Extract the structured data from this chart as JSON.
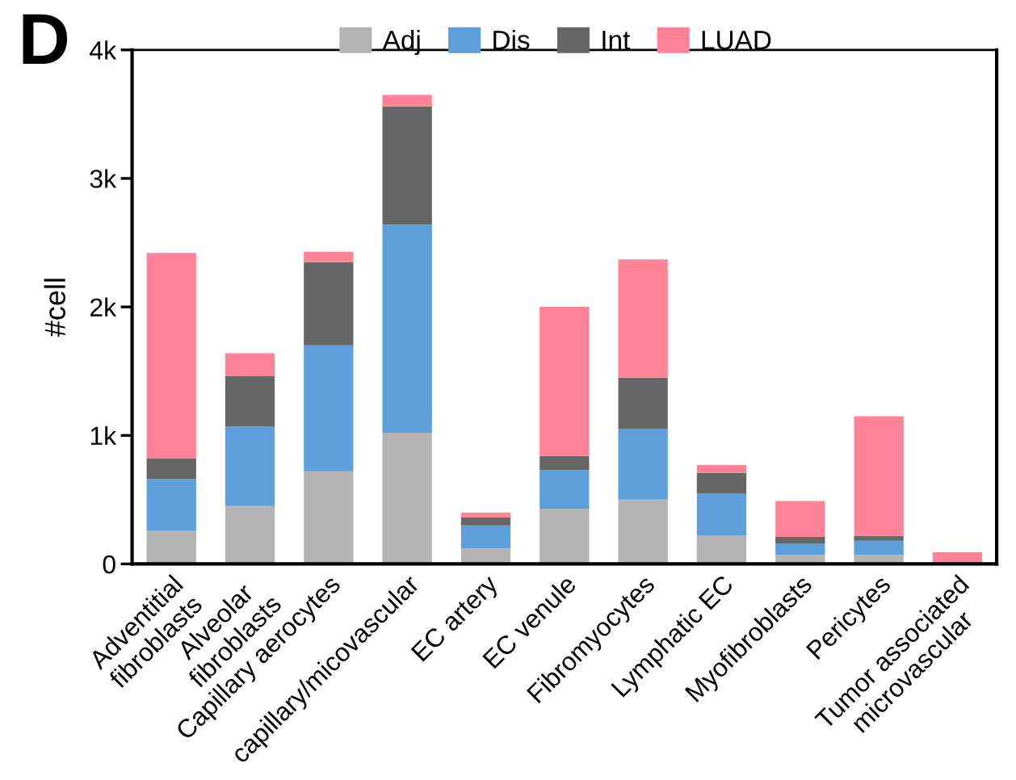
{
  "chart_data": {
    "type": "bar",
    "stacked": true,
    "ylabel": "#cell",
    "annotations": [
      "D"
    ],
    "categories": [
      "Adventitial\nfibroblasts",
      "Alveolar\nfibroblasts",
      "Capillary aerocytes",
      "capillary/micovascular",
      "EC artery",
      "EC venule",
      "Fibromyocytes",
      "Lymphatic EC",
      "Myofibroblasts",
      "Pericytes",
      "Tumor associated\nmicrovascular"
    ],
    "series": [
      {
        "name": "Adj",
        "color": "#b3b3b3",
        "values": [
          260,
          450,
          720,
          1020,
          120,
          430,
          500,
          220,
          70,
          70,
          0
        ]
      },
      {
        "name": "Dis",
        "color": "#5c9fda",
        "values": [
          400,
          620,
          980,
          1620,
          180,
          300,
          550,
          330,
          90,
          110,
          0
        ]
      },
      {
        "name": "Int",
        "color": "#666666",
        "values": [
          160,
          390,
          650,
          920,
          60,
          110,
          400,
          160,
          50,
          40,
          0
        ]
      },
      {
        "name": "LUAD",
        "color": "#fe8398",
        "values": [
          1600,
          180,
          80,
          90,
          40,
          1160,
          920,
          60,
          280,
          930,
          90
        ]
      }
    ],
    "ylim": [
      0,
      4000
    ],
    "yticks": [
      0,
      {
        "value": 1000,
        "label": "1k"
      },
      {
        "value": 2000,
        "label": "2k"
      },
      {
        "value": 3000,
        "label": "3k"
      },
      {
        "value": 4000,
        "label": "4k"
      }
    ],
    "legend": "top",
    "grid": false
  }
}
